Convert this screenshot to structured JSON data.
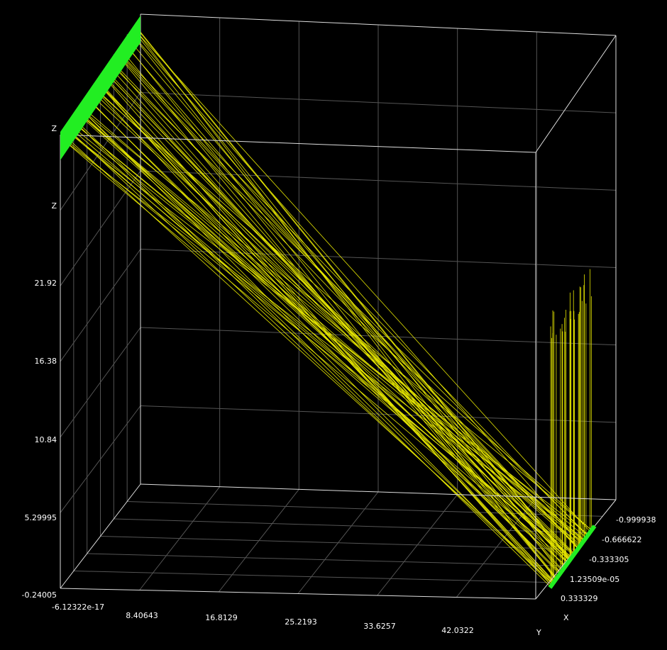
{
  "axes": {
    "z": {
      "labels": [
        "-0.24005",
        "5.29995",
        "10.84",
        "16.38",
        "21.92",
        "Z",
        "Z"
      ]
    },
    "x": {
      "labels": [
        "-6.12322e-17",
        "8.40643",
        "16.8129",
        "25.2193",
        "33.6257",
        "42.0322"
      ]
    },
    "y": {
      "labels": [
        "-0.999938",
        "-0.666622",
        "-0.333305",
        "1.23509e-05",
        "0.333329"
      ]
    },
    "names": [
      "X",
      "Y"
    ]
  }
}
